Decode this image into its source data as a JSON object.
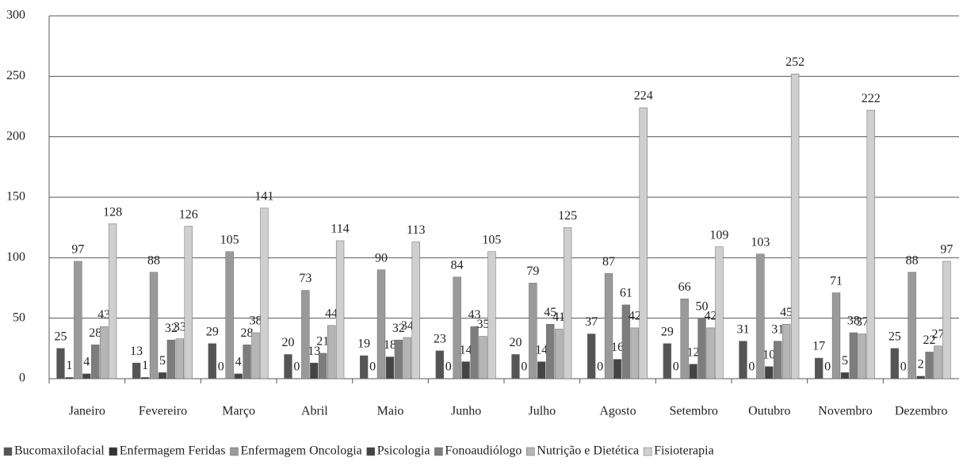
{
  "chart_data": {
    "type": "bar",
    "categories": [
      "Janeiro",
      "Fevereiro",
      "Março",
      "Abril",
      "Maio",
      "Junho",
      "Julho",
      "Agosto",
      "Setembro",
      "Outubro",
      "Novembro",
      "Dezembro"
    ],
    "series": [
      {
        "name": "Bucomaxilofacial",
        "color": "#555555",
        "values": [
          25,
          13,
          29,
          20,
          19,
          23,
          20,
          37,
          29,
          31,
          17,
          25
        ]
      },
      {
        "name": "Enfermagem Feridas",
        "color": "#333333",
        "values": [
          1,
          1,
          0,
          0,
          0,
          0,
          0,
          0,
          0,
          0,
          0,
          0
        ]
      },
      {
        "name": "Enfermagem Oncologia",
        "color": "#9a9a9a",
        "values": [
          97,
          88,
          105,
          73,
          90,
          84,
          79,
          87,
          66,
          103,
          71,
          88
        ]
      },
      {
        "name": "Psicologia",
        "color": "#444444",
        "values": [
          4,
          5,
          4,
          13,
          18,
          14,
          14,
          16,
          12,
          10,
          5,
          2
        ]
      },
      {
        "name": "Fonoaudiólogo",
        "color": "#7d7d7d",
        "values": [
          28,
          32,
          28,
          21,
          32,
          43,
          45,
          61,
          50,
          31,
          38,
          22
        ]
      },
      {
        "name": "Nutrição e Dietética",
        "color": "#b5b5b5",
        "values": [
          43,
          33,
          38,
          44,
          34,
          35,
          41,
          42,
          42,
          45,
          37,
          27
        ]
      },
      {
        "name": "Fisioterapia",
        "color": "#cfcfcf",
        "values": [
          128,
          126,
          141,
          114,
          113,
          105,
          125,
          224,
          109,
          252,
          222,
          97
        ]
      }
    ],
    "ylim": [
      0,
      300
    ],
    "yticks": [
      0,
      50,
      100,
      150,
      200,
      250,
      300
    ],
    "grid": true,
    "legend": "bottom"
  }
}
